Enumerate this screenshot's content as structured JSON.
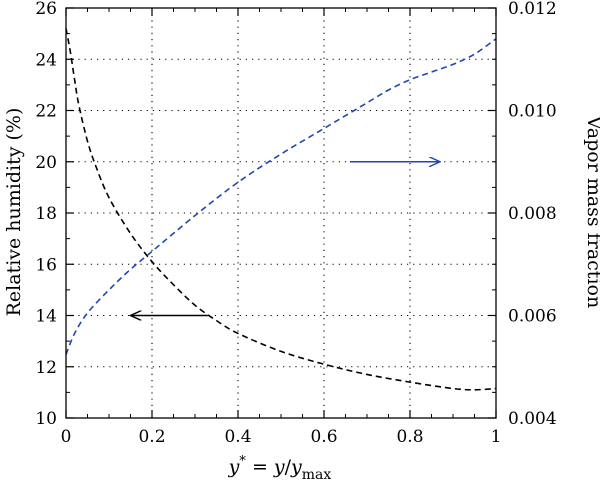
{
  "chart_data": {
    "type": "line",
    "xlabel": {
      "var": "y",
      "sup": "*",
      "eq": " = ",
      "num": "y",
      "slash": "/",
      "den": "y",
      "sub": "max"
    },
    "ylabel_left": "Relative humidity (%)",
    "ylabel_right": "Vapor mass fraction",
    "xlim": [
      0,
      1
    ],
    "ylim_left": [
      10,
      26
    ],
    "ylim_right": [
      0.004,
      0.012
    ],
    "x_ticks": [
      "0",
      "0.2",
      "0.4",
      "0.6",
      "0.8",
      "1"
    ],
    "x_tick_values": [
      0,
      0.2,
      0.4,
      0.6,
      0.8,
      1.0
    ],
    "y_left_ticks": [
      "10",
      "12",
      "14",
      "16",
      "18",
      "20",
      "22",
      "24",
      "26"
    ],
    "y_left_tick_values": [
      10,
      12,
      14,
      16,
      18,
      20,
      22,
      24,
      26
    ],
    "y_right_ticks": [
      "0.004",
      "0.006",
      "0.008",
      "0.010",
      "0.012"
    ],
    "y_right_tick_values": [
      0.004,
      0.006,
      0.008,
      0.01,
      0.012
    ],
    "grid": true,
    "series": [
      {
        "axis": "left",
        "color": "#000000",
        "style": "dashed",
        "x": [
          0,
          0.01,
          0.02,
          0.03,
          0.05,
          0.07,
          0.1,
          0.15,
          0.2,
          0.25,
          0.3,
          0.35,
          0.4,
          0.5,
          0.6,
          0.7,
          0.8,
          0.9,
          0.95,
          1.0
        ],
        "y": [
          25.2,
          24.3,
          23.2,
          22.2,
          20.8,
          19.8,
          18.6,
          17.2,
          16.1,
          15.2,
          14.4,
          13.8,
          13.3,
          12.6,
          12.1,
          11.7,
          11.4,
          11.15,
          11.1,
          11.15
        ]
      },
      {
        "axis": "right",
        "color": "#1f47b0",
        "style": "dashed",
        "x": [
          0,
          0.02,
          0.05,
          0.1,
          0.15,
          0.2,
          0.3,
          0.4,
          0.5,
          0.6,
          0.7,
          0.75,
          0.8,
          0.85,
          0.9,
          0.95,
          1.0
        ],
        "y": [
          0.00524,
          0.00565,
          0.00605,
          0.0065,
          0.0069,
          0.00725,
          0.00795,
          0.0086,
          0.00915,
          0.00965,
          0.01015,
          0.0104,
          0.0106,
          0.01075,
          0.0109,
          0.0111,
          0.0114
        ]
      }
    ],
    "annotations": [
      {
        "type": "arrow",
        "color": "#000000",
        "x_from": 0.33,
        "x_to": 0.15,
        "y": 14.0,
        "axis": "left"
      },
      {
        "type": "arrow",
        "color": "#1f47b0",
        "x_from": 0.66,
        "x_to": 0.87,
        "y": 20.0,
        "axis": "left"
      }
    ]
  }
}
